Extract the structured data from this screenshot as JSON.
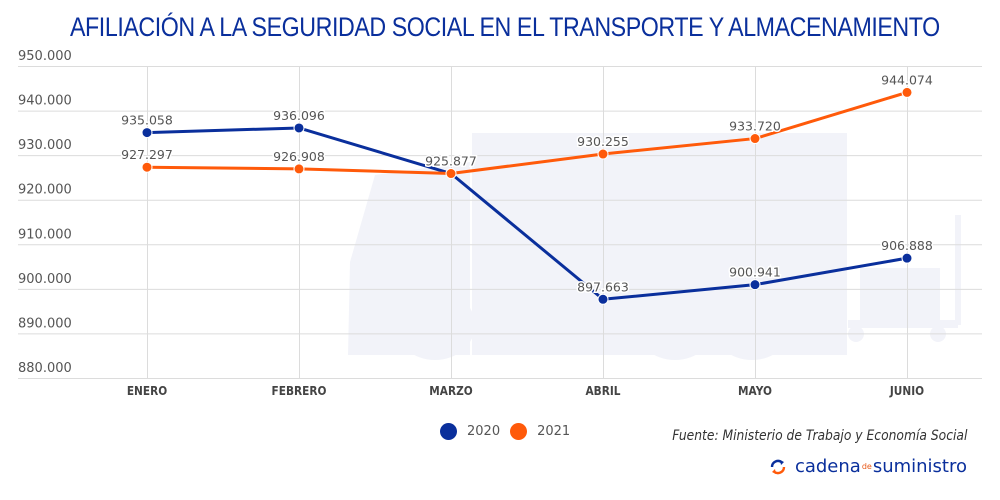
{
  "title": "AFILIACIÓN A LA SEGURIDAD SOCIAL EN EL TRANSPORTE Y ALMACENAMIENTO",
  "source": "Fuente: Ministerio de Trabajo y Economía Social",
  "brand": {
    "part1": "cadena",
    "part2": "de",
    "part3": "suministro",
    "icon": "refresh-arrows-icon"
  },
  "legend": [
    {
      "label": "2020",
      "color": "#0a2f9c"
    },
    {
      "label": "2021",
      "color": "#ff5a0a"
    }
  ],
  "chart_data": {
    "type": "line",
    "title": "AFILIACIÓN A LA SEGURIDAD SOCIAL EN EL TRANSPORTE Y ALMACENAMIENTO",
    "xlabel": "",
    "ylabel": "",
    "categories": [
      "ENERO",
      "FEBRERO",
      "MARZO",
      "ABRIL",
      "MAYO",
      "JUNIO"
    ],
    "ylim": [
      880000,
      950000
    ],
    "yticks": [
      880000,
      890000,
      900000,
      910000,
      920000,
      930000,
      940000,
      950000
    ],
    "ytick_labels": [
      "880.000",
      "890.000",
      "900.000",
      "910.000",
      "920.000",
      "930.000",
      "940.000",
      "950.000"
    ],
    "grid": true,
    "legend_position": "bottom-center",
    "series": [
      {
        "name": "2020",
        "color": "#0a2f9c",
        "values": [
          935058,
          936096,
          925877,
          897663,
          900941,
          906888
        ],
        "labels": [
          "935.058",
          "936.096",
          "",
          "897.663",
          "900.941",
          "906.888"
        ]
      },
      {
        "name": "2021",
        "color": "#ff5a0a",
        "values": [
          927297,
          926908,
          925877,
          930255,
          933720,
          944074
        ],
        "labels": [
          "927.297",
          "926.908",
          "925.877",
          "930.255",
          "933.720",
          "944.074"
        ]
      }
    ]
  }
}
